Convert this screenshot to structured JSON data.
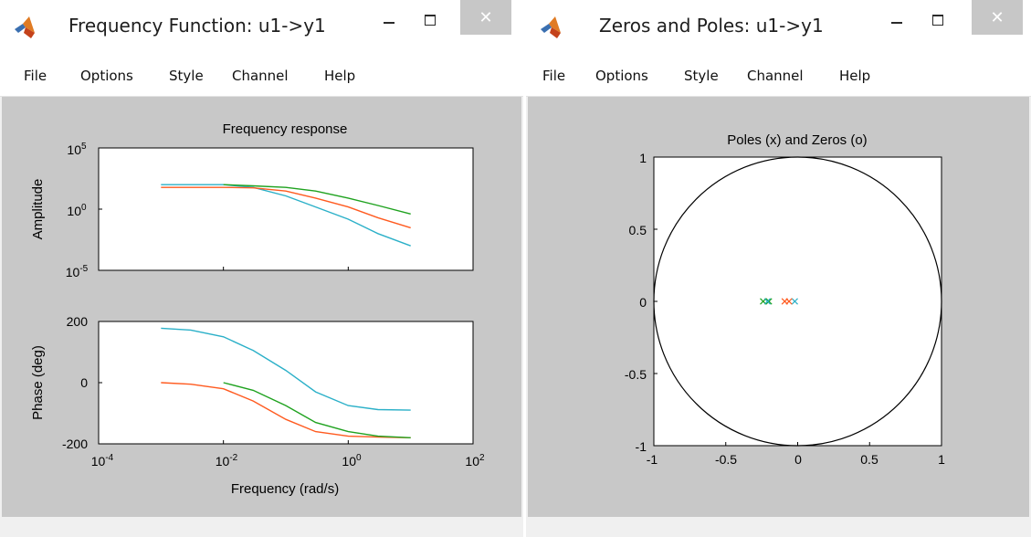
{
  "left_window": {
    "title": "Frequency Function: u1->y1",
    "menu": [
      "File",
      "Options",
      "Style",
      "Channel",
      "Help"
    ],
    "close_glyph": "✕",
    "icons": {
      "app": "matlab-logo-icon",
      "minimize": "minimize-icon",
      "maximize": "maximize-icon",
      "close": "close-icon"
    }
  },
  "right_window": {
    "title": "Zeros and Poles: u1->y1",
    "menu": [
      "File",
      "Options",
      "Style",
      "Channel",
      "Help"
    ],
    "close_glyph": "✕",
    "icons": {
      "app": "matlab-logo-icon",
      "minimize": "minimize-icon",
      "maximize": "maximize-icon",
      "close": "close-icon"
    }
  },
  "colors": {
    "series_blue": "#2bb0c8",
    "series_orange": "#ff5a1f",
    "series_green": "#1fa21f",
    "plot_bg": "#ffffff",
    "figure_bg": "#c8c8c8"
  },
  "chart_data": [
    {
      "type": "line",
      "title": "Frequency response",
      "ylabel": "Amplitude",
      "xlabel": "",
      "x_scale": "log",
      "y_scale": "log",
      "xlim": [
        0.0001,
        100
      ],
      "ylim": [
        1e-05,
        100000
      ],
      "y_tick_labels": [
        {
          "base": "10",
          "exp": "5"
        },
        {
          "base": "10",
          "exp": "0"
        },
        {
          "base": "10",
          "exp": "-5"
        }
      ],
      "grid": false,
      "series": [
        {
          "color": "#2bb0c8",
          "x": [
            0.001,
            0.01,
            0.03,
            0.1,
            0.3,
            1,
            3,
            10
          ],
          "y": [
            100,
            100,
            60,
            12,
            1.5,
            0.15,
            0.01,
            0.001
          ]
        },
        {
          "color": "#ff5a1f",
          "x": [
            0.001,
            0.01,
            0.03,
            0.1,
            0.3,
            1,
            3,
            10
          ],
          "y": [
            60,
            60,
            55,
            30,
            8,
            1.5,
            0.2,
            0.03
          ]
        },
        {
          "color": "#1fa21f",
          "x": [
            0.01,
            0.03,
            0.1,
            0.3,
            1,
            3,
            10
          ],
          "y": [
            100,
            80,
            60,
            30,
            8,
            2,
            0.4
          ]
        }
      ]
    },
    {
      "type": "line",
      "title": "",
      "ylabel": "Phase (deg)",
      "xlabel": "Frequency (rad/s)",
      "x_scale": "log",
      "xlim": [
        0.0001,
        100
      ],
      "ylim": [
        -200,
        200
      ],
      "x_tick_labels": [
        {
          "base": "10",
          "exp": "-4"
        },
        {
          "base": "10",
          "exp": "-2"
        },
        {
          "base": "10",
          "exp": "0"
        },
        {
          "base": "10",
          "exp": "2"
        }
      ],
      "y_tick_labels": [
        "200",
        "0",
        "-200"
      ],
      "grid": false,
      "series": [
        {
          "color": "#2bb0c8",
          "x": [
            0.001,
            0.003,
            0.01,
            0.03,
            0.1,
            0.3,
            1,
            3,
            10
          ],
          "y": [
            178,
            172,
            150,
            105,
            40,
            -30,
            -75,
            -88,
            -90
          ]
        },
        {
          "color": "#ff5a1f",
          "x": [
            0.001,
            0.003,
            0.01,
            0.03,
            0.1,
            0.3,
            1,
            3,
            10
          ],
          "y": [
            0,
            -5,
            -20,
            -60,
            -120,
            -160,
            -175,
            -178,
            -180
          ]
        },
        {
          "color": "#1fa21f",
          "x": [
            0.01,
            0.03,
            0.1,
            0.3,
            1,
            3,
            10
          ],
          "y": [
            0,
            -25,
            -75,
            -130,
            -160,
            -175,
            -180
          ]
        }
      ]
    },
    {
      "type": "scatter",
      "title": "Poles (x) and Zeros (o)",
      "xlabel": "",
      "ylabel": "",
      "xlim": [
        -1,
        1
      ],
      "ylim": [
        -1,
        1
      ],
      "x_tick_labels": [
        "-1",
        "-0.5",
        "0",
        "0.5",
        "1"
      ],
      "y_tick_labels": [
        "1",
        "0.5",
        "0",
        "-0.5",
        "-1"
      ],
      "unit_circle": true,
      "grid": false,
      "marker": "x",
      "series": [
        {
          "color": "#1fa21f",
          "points": [
            [
              -0.24,
              0
            ],
            [
              -0.2,
              0
            ]
          ]
        },
        {
          "color": "#2bb0c8",
          "points": [
            [
              -0.21,
              0
            ],
            [
              -0.02,
              0
            ]
          ]
        },
        {
          "color": "#ff5a1f",
          "points": [
            [
              -0.09,
              0
            ],
            [
              -0.06,
              0
            ]
          ]
        }
      ]
    }
  ]
}
